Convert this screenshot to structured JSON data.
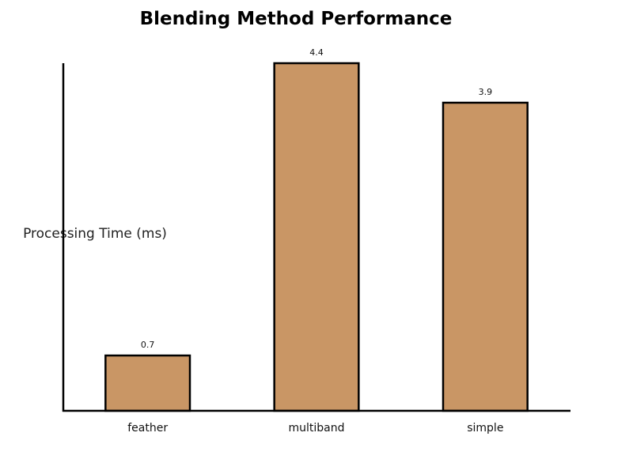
{
  "chart_data": {
    "type": "bar",
    "title": "Blending Method Performance",
    "xlabel": "",
    "ylabel": "Processing Time (ms)",
    "categories": [
      "feather",
      "multiband",
      "simple"
    ],
    "values": [
      0.7,
      4.4,
      3.9
    ],
    "data_labels": [
      "0.7",
      "4.4",
      "3.9"
    ],
    "ylim": [
      0,
      4.4
    ],
    "grid": false,
    "legend": "none",
    "bar_color": "#c99665",
    "bar_edge_color": "#000000"
  }
}
